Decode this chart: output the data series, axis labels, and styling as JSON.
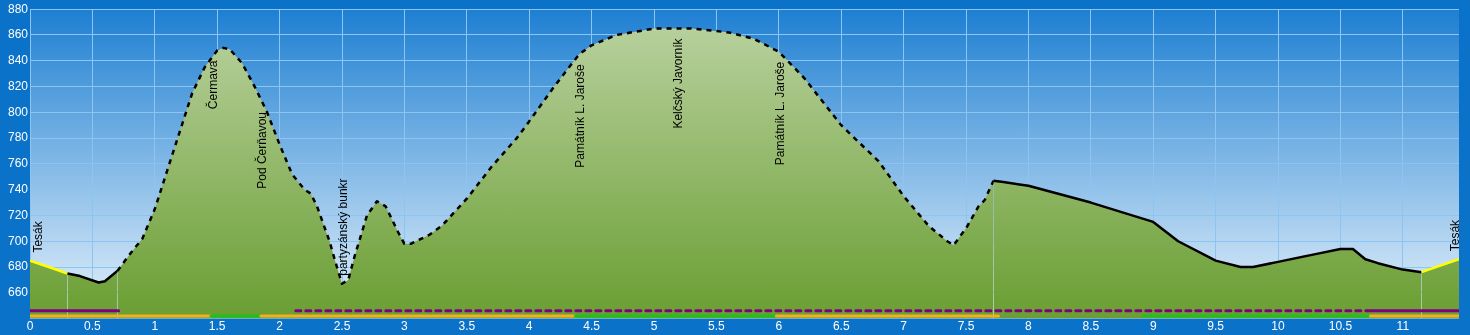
{
  "chart_data": {
    "type": "area",
    "xlim": [
      0,
      11.45
    ],
    "ylim": [
      640,
      880
    ],
    "xticks": [
      0,
      0.5,
      1,
      1.5,
      2,
      2.5,
      3,
      3.5,
      4,
      4.5,
      5,
      5.5,
      6,
      6.5,
      7,
      7.5,
      8,
      8.5,
      9,
      9.5,
      10,
      10.5,
      11
    ],
    "yticks": [
      660,
      680,
      700,
      720,
      740,
      760,
      780,
      800,
      820,
      840,
      860,
      880
    ],
    "grid": true,
    "legend": false,
    "marker": "none",
    "series": [
      {
        "color": "#ffff00",
        "line_style": "solid",
        "x": [
          0,
          0.15,
          0.3
        ],
        "values": [
          685,
          680,
          675
        ]
      },
      {
        "color": "#000000",
        "line_style": "solid",
        "x": [
          0.3,
          0.4,
          0.55,
          0.6,
          0.7
        ],
        "values": [
          675,
          673,
          668,
          669,
          677
        ]
      },
      {
        "color": "#000000",
        "line_style": "dashed",
        "x": [
          0.7,
          0.8,
          0.9,
          1.0,
          1.1,
          1.2,
          1.3,
          1.4,
          1.5,
          1.55,
          1.6,
          1.7,
          1.8,
          1.85,
          1.9,
          2.0,
          2.1,
          2.2,
          2.25,
          2.3,
          2.4,
          2.45,
          2.5,
          2.55,
          2.6,
          2.7,
          2.78,
          2.85,
          2.95,
          3.0,
          3.05,
          3.2,
          3.3,
          3.5,
          3.7,
          3.9,
          4.0,
          4.2,
          4.4,
          4.5,
          4.7,
          5.0,
          5.3,
          5.6,
          5.8,
          6.0,
          6.2,
          6.5,
          6.8,
          7.0,
          7.2,
          7.35,
          7.4,
          7.5,
          7.6,
          7.65,
          7.72
        ],
        "values": [
          677,
          690,
          702,
          725,
          755,
          785,
          815,
          835,
          848,
          850,
          849,
          838,
          820,
          810,
          800,
          775,
          752,
          740,
          737,
          727,
          700,
          683,
          667,
          670,
          688,
          720,
          731,
          727,
          707,
          698,
          698,
          705,
          712,
          733,
          758,
          780,
          793,
          820,
          845,
          852,
          860,
          865,
          865,
          862,
          857,
          847,
          827,
          790,
          762,
          735,
          712,
          700,
          697,
          710,
          727,
          732,
          747
        ]
      },
      {
        "color": "#000000",
        "line_style": "solid",
        "x": [
          7.72,
          7.8,
          8.0,
          8.5,
          9.0,
          9.2,
          9.5,
          9.7,
          9.8,
          10.0,
          10.3,
          10.5,
          10.6,
          10.7,
          10.8,
          11.0,
          11.15
        ],
        "values": [
          747,
          746,
          743,
          730,
          715,
          700,
          685,
          680,
          680,
          684,
          690,
          694,
          694,
          686,
          683,
          678,
          676
        ]
      },
      {
        "color": "#ffff00",
        "line_style": "solid",
        "x": [
          11.15,
          11.45
        ],
        "values": [
          676,
          686
        ]
      },
      {
        "type": "line",
        "color": "#800080",
        "line_style": "solid",
        "x": [
          0,
          0.71
        ],
        "values": [
          646,
          646
        ]
      },
      {
        "type": "line",
        "color": "#800080",
        "line_style": "dashed",
        "x": [
          2.13,
          10.72
        ],
        "values": [
          646,
          646
        ]
      },
      {
        "type": "line",
        "color": "#800080",
        "line_style": "solid",
        "x": [
          10.72,
          11.45
        ],
        "values": [
          646,
          646
        ]
      },
      {
        "type": "line",
        "color": "#f0b020",
        "line_style": "solid",
        "x": [
          0,
          1.45
        ],
        "values": [
          642,
          642
        ]
      },
      {
        "type": "line",
        "color": "#20c020",
        "line_style": "solid",
        "x": [
          1.45,
          1.85
        ],
        "values": [
          642,
          642
        ]
      },
      {
        "type": "line",
        "color": "#f0b020",
        "line_style": "solid",
        "x": [
          1.85,
          4.37
        ],
        "values": [
          642,
          642
        ]
      },
      {
        "type": "line",
        "color": "#20c020",
        "line_style": "solid",
        "x": [
          4.37,
          5.98
        ],
        "values": [
          642,
          642
        ]
      },
      {
        "type": "line",
        "color": "#f0b020",
        "line_style": "solid",
        "x": [
          5.98,
          7.76
        ],
        "values": [
          642,
          642
        ]
      },
      {
        "type": "line",
        "color": "#20c020",
        "line_style": "solid",
        "x": [
          8.92,
          10.74
        ],
        "values": [
          642,
          642
        ]
      },
      {
        "type": "line",
        "color": "#f0b020",
        "line_style": "solid",
        "x": [
          10.74,
          11.45
        ],
        "values": [
          642,
          642
        ]
      }
    ],
    "annotations": [
      {
        "text": "Tesák",
        "x": 0,
        "y": 685
      },
      {
        "text": "Čermava",
        "x": 1.47,
        "y": 848
      },
      {
        "text": "Pod Čerňavou",
        "x": 1.86,
        "y": 808
      },
      {
        "text": "partyzánský bunkr",
        "x": 2.51,
        "y": 667
      },
      {
        "text": "Památník L. Jaroše",
        "x": 4.41,
        "y": 845
      },
      {
        "text": "Kelčský Javorník",
        "x": 5.19,
        "y": 865
      },
      {
        "text": "Památník L. Jaroše",
        "x": 6.01,
        "y": 847
      },
      {
        "text": "Tesák",
        "x": 11.45,
        "y": 686
      }
    ]
  }
}
